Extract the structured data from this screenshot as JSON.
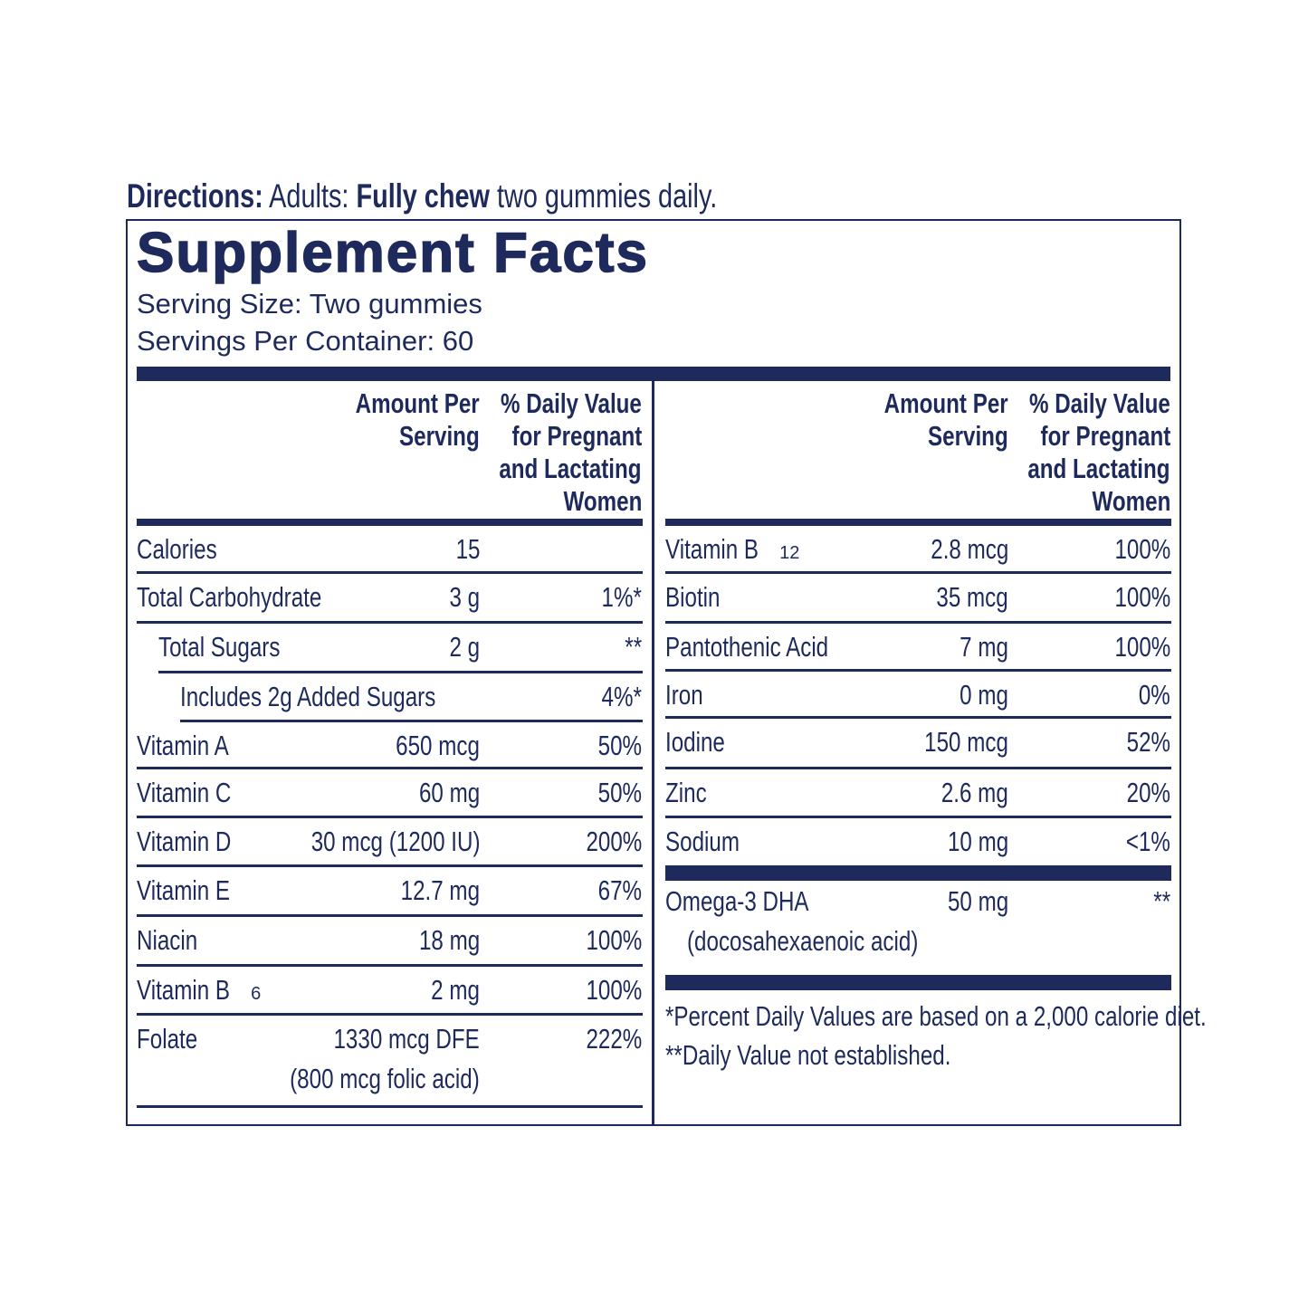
{
  "directions": {
    "label": "Directions:",
    "pre": "Adults:",
    "bold": "Fully chew",
    "post": "two gummies daily."
  },
  "title": "Supplement Facts",
  "serving_size": "Serving Size: Two gummies",
  "servings_per_container": "Servings Per Container: 60",
  "headers": {
    "amount_l1": "Amount Per",
    "amount_l2": "Serving",
    "dv_l1": "% Daily Value",
    "dv_l2": "for Pregnant",
    "dv_l3": "and Lactating",
    "dv_l4": "Women"
  },
  "left_rows": [
    {
      "label": "Calories",
      "amount": "15",
      "dv": ""
    },
    {
      "label": "Total Carbohydrate",
      "amount": "3 g",
      "dv": "1%*"
    },
    {
      "label": "Total Sugars",
      "amount": "2 g",
      "dv": "**"
    },
    {
      "label": "Includes 2g Added Sugars",
      "amount": "",
      "dv": "4%*"
    },
    {
      "label": "Vitamin A",
      "amount": "650 mcg",
      "dv": "50%"
    },
    {
      "label": "Vitamin C",
      "amount": "60 mg",
      "dv": "50%"
    },
    {
      "label": "Vitamin D",
      "amount": "30 mcg (1200 IU)",
      "dv": "200%"
    },
    {
      "label": "Vitamin E",
      "amount": "12.7 mg",
      "dv": "67%"
    },
    {
      "label": "Niacin",
      "amount": "18 mg",
      "dv": "100%"
    },
    {
      "label": "Vitamin B",
      "sub": "6",
      "amount": "2 mg",
      "dv": "100%"
    },
    {
      "label": "Folate",
      "amount": "1330 mcg DFE",
      "amount2": "(800 mcg folic acid)",
      "dv": "222%"
    }
  ],
  "right_rows": [
    {
      "label": "Vitamin B",
      "sub": "12",
      "amount": "2.8 mcg",
      "dv": "100%"
    },
    {
      "label": "Biotin",
      "amount": "35 mcg",
      "dv": "100%"
    },
    {
      "label": "Pantothenic Acid",
      "amount": "7 mg",
      "dv": "100%"
    },
    {
      "label": "Iron",
      "amount": "0 mg",
      "dv": "0%"
    },
    {
      "label": "Iodine",
      "amount": "150 mcg",
      "dv": "52%"
    },
    {
      "label": "Zinc",
      "amount": "2.6 mg",
      "dv": "20%"
    },
    {
      "label": "Sodium",
      "amount": "10 mg",
      "dv": "<1%"
    },
    {
      "label": "Omega-3 DHA",
      "label2": "(docosahexaenoic acid)",
      "amount": "50 mg",
      "dv": "**"
    }
  ],
  "footnotes": [
    "*Percent Daily Values are based on a 2,000 calorie diet.",
    "**Daily Value not established."
  ],
  "colors": {
    "ink": "#1e2a5c"
  }
}
